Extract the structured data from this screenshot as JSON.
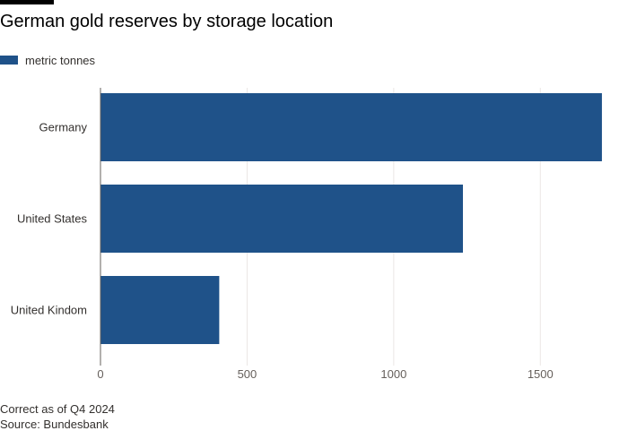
{
  "chart_data": {
    "type": "bar",
    "orientation": "horizontal",
    "title": "German gold reserves by storage location",
    "categories": [
      "Germany",
      "United States",
      "United Kindom"
    ],
    "series": [
      {
        "name": "metric tonnes",
        "values": [
          1710,
          1236,
          405
        ]
      }
    ],
    "xlim": [
      0,
      1750
    ],
    "xticks": [
      0,
      500,
      1000,
      1500
    ],
    "grid": true,
    "legend_position": "top-left",
    "bar_color": "#1f5289"
  },
  "footer": {
    "note": "Correct as of Q4 2024",
    "source": "Source: Bundesbank"
  }
}
